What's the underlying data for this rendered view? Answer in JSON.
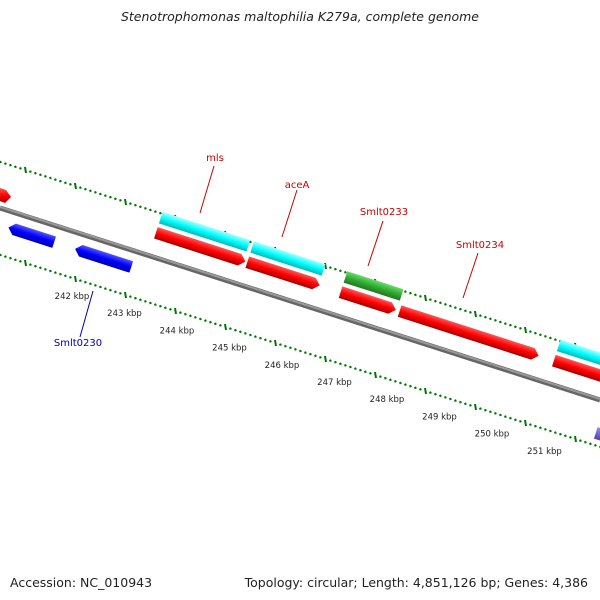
{
  "title": "Stenotrophomonas maltophilia K279a, complete genome",
  "footer": {
    "accession": "Accession: NC_010943",
    "topology": "Topology: circular; Length: 4,851,126 bp; Genes: 4,386"
  },
  "scale": {
    "labels": [
      "242 kbp",
      "243 kbp",
      "244 kbp",
      "245 kbp",
      "246 kbp",
      "247 kbp",
      "248 kbp",
      "249 kbp",
      "250 kbp",
      "251 kbp"
    ]
  },
  "gene_labels": [
    {
      "id": "mls",
      "text": "mls",
      "color": "#cc0000"
    },
    {
      "id": "aceA",
      "text": "aceA",
      "color": "#cc0000"
    },
    {
      "id": "smlt0233",
      "text": "Smlt0233",
      "color": "#cc0000"
    },
    {
      "id": "smlt0234",
      "text": "Smlt0234",
      "color": "#cc0000"
    },
    {
      "id": "smlt0230",
      "text": "Smlt0230",
      "color": "#0000aa"
    }
  ],
  "colors": {
    "cds_forward": "#ff0000",
    "cds_reverse": "#0000ff",
    "gene_feature": "#00ffff",
    "rna_feature": "#33aa33",
    "other_feature": "#7766cc",
    "backbone": "#888888",
    "tick_marks": "#007700"
  }
}
